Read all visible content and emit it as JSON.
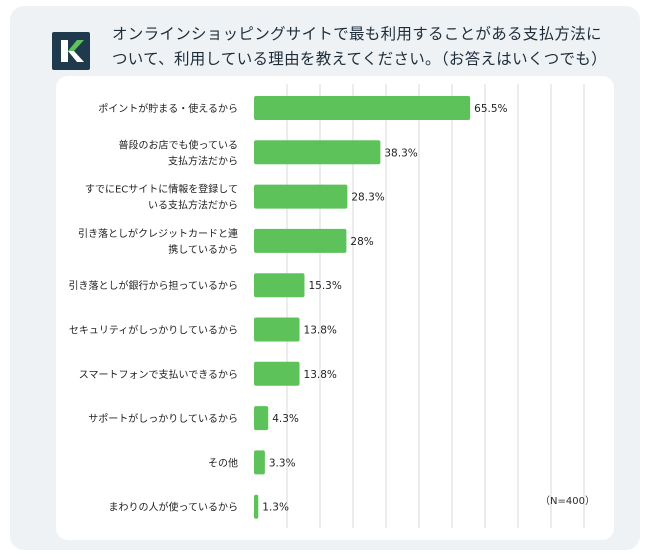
{
  "header": {
    "title_line1": "オンラインショッピングサイトで最も利用することがある支払方法に",
    "title_line2": "ついて、利用している理由を教えてください。（お答えはいくつでも）",
    "logo_letter": "K"
  },
  "colors": {
    "bar": "#5ec25a",
    "logo_bg": "#1e3a4c",
    "logo_accent": "#5ec25a",
    "grid": "#d9d9d9"
  },
  "chart_data": {
    "type": "bar",
    "orientation": "horizontal",
    "title": "オンラインショッピングサイトで最も利用することがある支払方法について、利用している理由を教えてください。（お答えはいくつでも）",
    "categories": [
      [
        "ポイントが貯まる・使えるから"
      ],
      [
        "普段のお店でも使っている",
        "支払方法だから"
      ],
      [
        "すでにECサイトに情報を登録して",
        "いる支払方法だから"
      ],
      [
        "引き落としがクレジットカードと連",
        "携しているから"
      ],
      [
        "引き落としが銀行から担っているから"
      ],
      [
        "セキュリティがしっかりしているから"
      ],
      [
        "スマートフォンで支払いできるから"
      ],
      [
        "サポートがしっかりしているから"
      ],
      [
        "その他"
      ],
      [
        "まわりの人が使っているから"
      ]
    ],
    "values": [
      65.5,
      38.3,
      28.3,
      28,
      15.3,
      13.8,
      13.8,
      4.3,
      3.3,
      1.3
    ],
    "value_labels": [
      "65.5%",
      "38.3%",
      "28.3%",
      "28%",
      "15.3%",
      "13.8%",
      "13.8%",
      "4.3%",
      "3.3%",
      "1.3%"
    ],
    "xlim": [
      0,
      100
    ],
    "grid": true,
    "note": "（N=400）"
  }
}
